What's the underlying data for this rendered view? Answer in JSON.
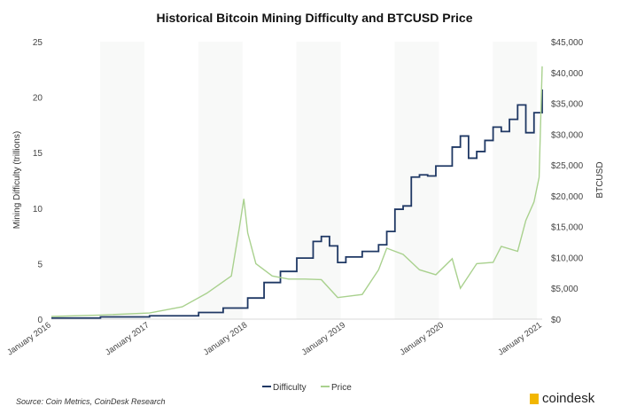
{
  "chart_data": {
    "type": "line",
    "title": "Historical Bitcoin Mining Difficulty and BTCUSD Price",
    "ylabel": "Mining Difficulty (trillions)",
    "y2label": "BTCUSD",
    "ylim": [
      0,
      25
    ],
    "y2lim": [
      0,
      45000
    ],
    "yticks": [
      "0",
      "5",
      "10",
      "15",
      "20",
      "25"
    ],
    "y2ticks": [
      "$0",
      "$5,000",
      "$10,000",
      "$15,000",
      "$20,000",
      "$25,000",
      "$30,000",
      "$35,000",
      "$40,000",
      "$45,000"
    ],
    "xticks": [
      "January 2016",
      "January 2017",
      "January 2018",
      "January 2019",
      "January 2020",
      "January 2021"
    ],
    "xlim": [
      "2016-01",
      "2021-01"
    ],
    "legend_position": "bottom",
    "grid": false,
    "series": [
      {
        "name": "Difficulty",
        "color": "#1f3864",
        "axis": "left",
        "step": true,
        "x": [
          "2016-01",
          "2016-07",
          "2017-01",
          "2017-07",
          "2017-10",
          "2018-01",
          "2018-03",
          "2018-05",
          "2018-07",
          "2018-09",
          "2018-10",
          "2018-11",
          "2018-12",
          "2019-01",
          "2019-03",
          "2019-05",
          "2019-06",
          "2019-07",
          "2019-08",
          "2019-09",
          "2019-10",
          "2019-11",
          "2019-12",
          "2020-01",
          "2020-02",
          "2020-03",
          "2020-04",
          "2020-05",
          "2020-06",
          "2020-07",
          "2020-08",
          "2020-09",
          "2020-10",
          "2020-11",
          "2020-12",
          "2021-01"
        ],
        "values": [
          0.1,
          0.2,
          0.3,
          0.6,
          1.0,
          1.9,
          3.3,
          4.3,
          5.5,
          7.0,
          7.45,
          6.6,
          5.1,
          5.6,
          6.1,
          6.7,
          7.9,
          9.9,
          10.2,
          12.8,
          13.0,
          12.9,
          13.8,
          13.8,
          15.5,
          16.5,
          14.5,
          15.1,
          16.1,
          17.3,
          16.9,
          18.0,
          19.3,
          16.8,
          18.6,
          20.7
        ]
      },
      {
        "name": "Price",
        "color": "#a9d18e",
        "axis": "right",
        "x": [
          "2016-01",
          "2016-07",
          "2017-01",
          "2017-05",
          "2017-08",
          "2017-11",
          "2017-12",
          "2017-12-17",
          "2018-01",
          "2018-02",
          "2018-04",
          "2018-06",
          "2018-08",
          "2018-10",
          "2018-12",
          "2019-03",
          "2019-05",
          "2019-06",
          "2019-08",
          "2019-10",
          "2019-12",
          "2020-02",
          "2020-03",
          "2020-05",
          "2020-07",
          "2020-08",
          "2020-10",
          "2020-11",
          "2020-12",
          "2020-12-20",
          "2021-01"
        ],
        "values": [
          430,
          650,
          1000,
          2000,
          4200,
          7000,
          15000,
          19500,
          14000,
          9000,
          7000,
          6500,
          6500,
          6400,
          3500,
          4000,
          8000,
          11500,
          10500,
          8000,
          7200,
          9800,
          5000,
          9000,
          9200,
          11800,
          11000,
          16000,
          19000,
          23000,
          41000
        ]
      }
    ]
  },
  "source": "Source: Coin Metrics, CoinDesk Research",
  "logo": "coindesk"
}
